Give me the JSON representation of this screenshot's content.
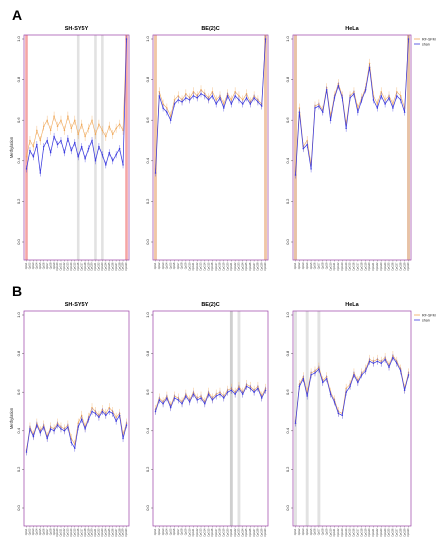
{
  "figure": {
    "row_labels": [
      "A",
      "B"
    ]
  },
  "chart_data": [
    {
      "type": "line",
      "row": "A",
      "title": "SH-SY5Y",
      "ylabel": "Methylation",
      "ylim": [
        0,
        1
      ],
      "yticks": [
        "0.0",
        "0.2",
        "0.4",
        "0.6",
        "0.8",
        "1.0"
      ],
      "grid": false,
      "x": [
        "CpG1",
        "CpG2",
        "CpG3",
        "CpG4",
        "CpG5",
        "CpG6",
        "CpG7",
        "CpG8",
        "CpG9",
        "CpG10",
        "CpG11",
        "CpG12",
        "CpG13",
        "CpG14",
        "CpG15",
        "CpG16",
        "CpG17",
        "CpG18",
        "CpG19",
        "CpG20",
        "CpG21",
        "CpG22",
        "CpG23",
        "CpG24",
        "CpG25",
        "CpG26",
        "CpG27",
        "CpG28",
        "CpG29",
        "CpG30"
      ],
      "series": [
        {
          "name": "RF-SFM",
          "color": "#f0a95a",
          "values": [
            0.42,
            0.5,
            0.47,
            0.55,
            0.5,
            0.57,
            0.6,
            0.55,
            0.62,
            0.57,
            0.6,
            0.55,
            0.62,
            0.56,
            0.6,
            0.53,
            0.58,
            0.52,
            0.56,
            0.6,
            0.53,
            0.58,
            0.55,
            0.52,
            0.57,
            0.53,
            0.56,
            0.58,
            0.55,
            1.0
          ]
        },
        {
          "name": "shan",
          "color": "#3b3bdf",
          "values": [
            0.36,
            0.45,
            0.42,
            0.48,
            0.34,
            0.47,
            0.5,
            0.44,
            0.52,
            0.48,
            0.5,
            0.44,
            0.51,
            0.45,
            0.49,
            0.42,
            0.47,
            0.41,
            0.46,
            0.5,
            0.4,
            0.47,
            0.43,
            0.38,
            0.44,
            0.4,
            0.43,
            0.46,
            0.38,
            1.0
          ]
        }
      ],
      "highlight_columns": [
        {
          "x": "CpG1",
          "shade": "#f5a5a5"
        },
        {
          "x": "CpG16",
          "shade": "#e2e2e2"
        },
        {
          "x": "CpG21",
          "shade": "#e2e2e2"
        },
        {
          "x": "CpG23",
          "shade": "#e2e2e2"
        },
        {
          "x": "CpG30",
          "shade": "#f5a5a5"
        }
      ]
    },
    {
      "type": "line",
      "row": "A",
      "title": "BE(2)C",
      "ylim": [
        0,
        1
      ],
      "yticks": [
        "0.0",
        "0.2",
        "0.4",
        "0.6",
        "0.8",
        "1.0"
      ],
      "grid": false,
      "x": [
        "CpG1",
        "CpG2",
        "CpG3",
        "CpG4",
        "CpG5",
        "CpG6",
        "CpG7",
        "CpG8",
        "CpG9",
        "CpG10",
        "CpG11",
        "CpG12",
        "CpG13",
        "CpG14",
        "CpG15",
        "CpG16",
        "CpG17",
        "CpG18",
        "CpG19",
        "CpG20",
        "CpG21",
        "CpG22",
        "CpG23",
        "CpG24",
        "CpG25",
        "CpG26",
        "CpG27",
        "CpG28",
        "CpG29",
        "CpG30"
      ],
      "series": [
        {
          "name": "RF-SFM",
          "color": "#f0a95a",
          "values": [
            0.36,
            0.74,
            0.68,
            0.66,
            0.62,
            0.7,
            0.72,
            0.7,
            0.73,
            0.71,
            0.74,
            0.72,
            0.75,
            0.73,
            0.71,
            0.74,
            0.7,
            0.72,
            0.68,
            0.73,
            0.7,
            0.74,
            0.72,
            0.7,
            0.73,
            0.69,
            0.72,
            0.7,
            0.68,
            1.0
          ]
        },
        {
          "name": "shan",
          "color": "#3b3bdf",
          "values": [
            0.34,
            0.72,
            0.66,
            0.64,
            0.6,
            0.68,
            0.7,
            0.69,
            0.71,
            0.7,
            0.72,
            0.71,
            0.73,
            0.72,
            0.7,
            0.72,
            0.68,
            0.71,
            0.66,
            0.72,
            0.68,
            0.72,
            0.7,
            0.68,
            0.71,
            0.68,
            0.71,
            0.69,
            0.67,
            1.0
          ]
        }
      ],
      "highlight_columns": [
        {
          "x": "CpG1",
          "shade": "#f0c6a6"
        },
        {
          "x": "CpG30",
          "shade": "#f0c6a6"
        }
      ]
    },
    {
      "type": "line",
      "row": "A",
      "title": "HeLa",
      "ylim": [
        0,
        1
      ],
      "yticks": [
        "0.0",
        "0.2",
        "0.4",
        "0.6",
        "0.8",
        "1.0"
      ],
      "grid": false,
      "x": [
        "CpG1",
        "CpG2",
        "CpG3",
        "CpG4",
        "CpG5",
        "CpG6",
        "CpG7",
        "CpG8",
        "CpG9",
        "CpG10",
        "CpG11",
        "CpG12",
        "CpG13",
        "CpG14",
        "CpG15",
        "CpG16",
        "CpG17",
        "CpG18",
        "CpG19",
        "CpG20",
        "CpG21",
        "CpG22",
        "CpG23",
        "CpG24",
        "CpG25",
        "CpG26",
        "CpG27",
        "CpG28",
        "CpG29",
        "CpG30"
      ],
      "series": [
        {
          "name": "RF-SFM",
          "color": "#f0a95a",
          "values": [
            0.35,
            0.66,
            0.47,
            0.5,
            0.38,
            0.67,
            0.68,
            0.65,
            0.76,
            0.62,
            0.72,
            0.78,
            0.72,
            0.58,
            0.72,
            0.74,
            0.66,
            0.71,
            0.76,
            0.88,
            0.72,
            0.68,
            0.74,
            0.7,
            0.72,
            0.68,
            0.74,
            0.72,
            0.66,
            1.0
          ]
        },
        {
          "name": "shan",
          "color": "#3b3bdf",
          "values": [
            0.33,
            0.64,
            0.46,
            0.48,
            0.36,
            0.66,
            0.67,
            0.64,
            0.75,
            0.6,
            0.71,
            0.77,
            0.71,
            0.56,
            0.71,
            0.73,
            0.64,
            0.7,
            0.75,
            0.86,
            0.7,
            0.66,
            0.72,
            0.68,
            0.71,
            0.66,
            0.72,
            0.7,
            0.64,
            1.0
          ]
        }
      ],
      "highlight_columns": [
        {
          "x": "CpG1",
          "shade": "#e8c2a6"
        },
        {
          "x": "CpG30",
          "shade": "#e8c2a6"
        }
      ],
      "legend": {
        "placement": "top-right",
        "entries": [
          "RF-SFM",
          "shan"
        ]
      }
    },
    {
      "type": "line",
      "row": "B",
      "title": "SH-SY5Y",
      "ylabel": "Methylation",
      "ylim": [
        0,
        1
      ],
      "yticks": [
        "0.0",
        "0.2",
        "0.4",
        "0.6",
        "0.8",
        "1.0"
      ],
      "grid": false,
      "x": [
        "CpG1",
        "CpG2",
        "CpG3",
        "CpG4",
        "CpG5",
        "CpG6",
        "CpG7",
        "CpG8",
        "CpG9",
        "CpG10",
        "CpG11",
        "CpG12",
        "CpG13",
        "CpG14",
        "CpG15",
        "CpG16",
        "CpG17",
        "CpG18",
        "CpG19",
        "CpG20",
        "CpG21",
        "CpG22",
        "CpG23",
        "CpG24",
        "CpG25",
        "CpG26",
        "CpG27",
        "CpG28",
        "CpG29",
        "CpG30"
      ],
      "series": [
        {
          "name": "RF-SFM",
          "color": "#f0a95a",
          "values": [
            0.3,
            0.42,
            0.38,
            0.44,
            0.4,
            0.43,
            0.37,
            0.42,
            0.41,
            0.44,
            0.42,
            0.41,
            0.43,
            0.36,
            0.33,
            0.44,
            0.48,
            0.42,
            0.47,
            0.52,
            0.5,
            0.48,
            0.51,
            0.49,
            0.52,
            0.5,
            0.47,
            0.49,
            0.38,
            0.44
          ]
        },
        {
          "name": "shan",
          "color": "#3b3bdf",
          "values": [
            0.29,
            0.41,
            0.37,
            0.43,
            0.39,
            0.42,
            0.36,
            0.41,
            0.4,
            0.43,
            0.41,
            0.4,
            0.42,
            0.34,
            0.31,
            0.42,
            0.46,
            0.41,
            0.46,
            0.5,
            0.49,
            0.47,
            0.5,
            0.48,
            0.5,
            0.49,
            0.45,
            0.48,
            0.36,
            0.43
          ]
        }
      ],
      "highlight_columns": []
    },
    {
      "type": "line",
      "row": "B",
      "title": "BE(2)C",
      "ylim": [
        0,
        1
      ],
      "yticks": [
        "0.0",
        "0.2",
        "0.4",
        "0.6",
        "0.8",
        "1.0"
      ],
      "grid": false,
      "x": [
        "CpG1",
        "CpG2",
        "CpG3",
        "CpG4",
        "CpG5",
        "CpG6",
        "CpG7",
        "CpG8",
        "CpG9",
        "CpG10",
        "CpG11",
        "CpG12",
        "CpG13",
        "CpG14",
        "CpG15",
        "CpG16",
        "CpG17",
        "CpG18",
        "CpG19",
        "CpG20",
        "CpG21",
        "CpG22",
        "CpG23",
        "CpG24",
        "CpG25",
        "CpG26",
        "CpG27",
        "CpG28",
        "CpG29",
        "CpG30"
      ],
      "series": [
        {
          "name": "RF-SFM",
          "color": "#f0a95a",
          "values": [
            0.51,
            0.57,
            0.55,
            0.58,
            0.53,
            0.58,
            0.57,
            0.55,
            0.59,
            0.56,
            0.6,
            0.57,
            0.58,
            0.55,
            0.6,
            0.57,
            0.59,
            0.6,
            0.58,
            0.61,
            0.62,
            0.6,
            0.63,
            0.6,
            0.64,
            0.63,
            0.61,
            0.63,
            0.58,
            0.62
          ]
        },
        {
          "name": "shan",
          "color": "#3b3bdf",
          "values": [
            0.5,
            0.56,
            0.54,
            0.57,
            0.52,
            0.57,
            0.56,
            0.54,
            0.58,
            0.55,
            0.59,
            0.56,
            0.57,
            0.54,
            0.59,
            0.56,
            0.58,
            0.59,
            0.57,
            0.6,
            0.61,
            0.59,
            0.62,
            0.59,
            0.63,
            0.62,
            0.6,
            0.62,
            0.57,
            0.61
          ]
        }
      ],
      "highlight_columns": [
        {
          "x": "CpG21",
          "shade": "#cfcfcf"
        },
        {
          "x": "CpG23",
          "shade": "#e2e2e2"
        }
      ]
    },
    {
      "type": "line",
      "row": "B",
      "title": "HeLa",
      "ylim": [
        0,
        1
      ],
      "yticks": [
        "0.0",
        "0.2",
        "0.4",
        "0.6",
        "0.8",
        "1.0"
      ],
      "grid": false,
      "x": [
        "CpG1",
        "CpG2",
        "CpG3",
        "CpG4",
        "CpG5",
        "CpG6",
        "CpG7",
        "CpG8",
        "CpG9",
        "CpG10",
        "CpG11",
        "CpG12",
        "CpG13",
        "CpG14",
        "CpG15",
        "CpG16",
        "CpG17",
        "CpG18",
        "CpG19",
        "CpG20",
        "CpG21",
        "CpG22",
        "CpG23",
        "CpG24",
        "CpG25",
        "CpG26",
        "CpG27",
        "CpG28",
        "CpG29",
        "CpG30"
      ],
      "series": [
        {
          "name": "RF-SFM",
          "color": "#f0a95a",
          "values": [
            0.45,
            0.64,
            0.68,
            0.6,
            0.7,
            0.71,
            0.73,
            0.66,
            0.68,
            0.6,
            0.56,
            0.5,
            0.49,
            0.62,
            0.64,
            0.7,
            0.66,
            0.7,
            0.72,
            0.77,
            0.76,
            0.77,
            0.76,
            0.78,
            0.74,
            0.79,
            0.76,
            0.72,
            0.62,
            0.7
          ]
        },
        {
          "name": "shan",
          "color": "#3b3bdf",
          "values": [
            0.44,
            0.63,
            0.67,
            0.58,
            0.69,
            0.7,
            0.72,
            0.65,
            0.67,
            0.59,
            0.55,
            0.49,
            0.48,
            0.6,
            0.63,
            0.69,
            0.65,
            0.69,
            0.71,
            0.76,
            0.75,
            0.76,
            0.75,
            0.77,
            0.73,
            0.78,
            0.75,
            0.71,
            0.61,
            0.69
          ]
        }
      ],
      "highlight_columns": [
        {
          "x": "CpG1",
          "shade": "#e2e2e2"
        },
        {
          "x": "CpG4",
          "shade": "#e2e2e2"
        },
        {
          "x": "CpG7",
          "shade": "#e2e2e2"
        }
      ],
      "legend": {
        "placement": "top-right",
        "entries": [
          "RF-SFM",
          "shan"
        ]
      }
    }
  ]
}
